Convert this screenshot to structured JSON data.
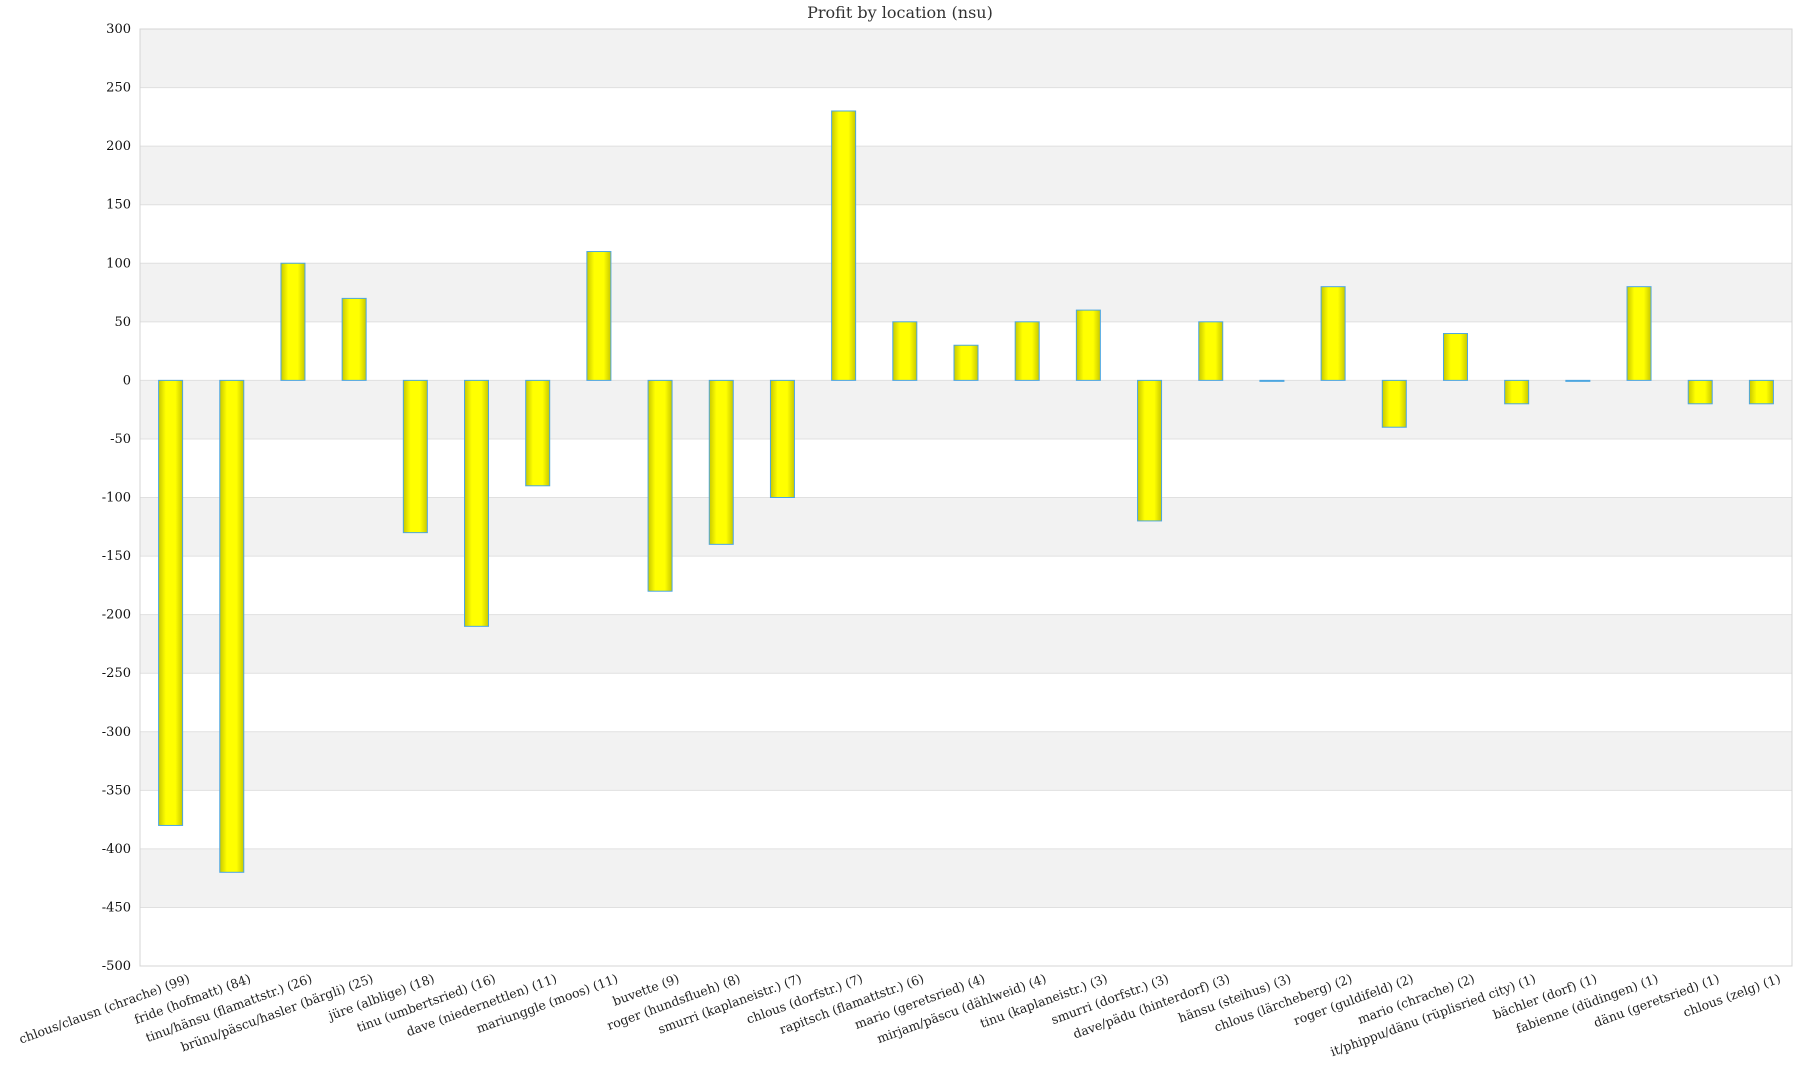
{
  "chart_data": {
    "type": "bar",
    "title": "Profit by location  (nsu)",
    "xlabel": "",
    "ylabel": "",
    "ylim": [
      -500,
      300
    ],
    "ytick_step": 50,
    "grid": true,
    "alternating_bands": true,
    "colors": {
      "bar_fill": "#ffff00",
      "bar_edge_shade": "#c8c800",
      "bar_stroke": "#4da6e0",
      "band": "#f2f2f2",
      "grid": "#e0e0e0"
    },
    "categories": [
      "chlous/clausn (chrache) (99)",
      "fride (hofmatt) (84)",
      "tinu/hänsu (flamattstr.) (26)",
      "brünu/päscu/hasler (bärgli) (25)",
      "jüre (albligе) (18)",
      "tinu (umbertsried) (16)",
      "dave (niedernettlen) (11)",
      "mariunggle (moos) (11)",
      "buvette (9)",
      "roger (hundsflueh) (8)",
      "smurri (kaplaneistr.) (7)",
      "chlous (dorfstr.) (7)",
      "rapitsch (flamattstr.) (6)",
      "mario (geretsried) (4)",
      "mirjam/päscu (dählweid) (4)",
      "tinu (kaplaneistr.) (3)",
      "smurri (dorfstr.) (3)",
      "dave/pädu (hinterdorf) (3)",
      "hänsu (steihus) (3)",
      "chlous (lärcheberg) (2)",
      "roger (guldifeld) (2)",
      "mario (chrache) (2)",
      "it/phippu/dänu (rüplisried city) (1)",
      "bächler (dorf) (1)",
      "fabienne (düdingen) (1)",
      "dänu (geretsried) (1)",
      "chlous (zelg) (1)"
    ],
    "values": [
      -380,
      -420,
      100,
      70,
      -130,
      -210,
      -90,
      110,
      -180,
      -140,
      -100,
      230,
      50,
      30,
      50,
      60,
      -120,
      50,
      0,
      80,
      -40,
      40,
      -20,
      0,
      80,
      -20,
      -20
    ]
  }
}
